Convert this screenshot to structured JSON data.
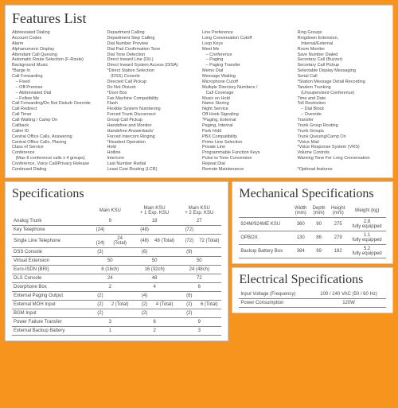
{
  "features": {
    "title": "Features List",
    "columns": [
      [
        "Abbreviated Dialing",
        "Account Codes",
        "Alarm",
        "Alphanumeric Display",
        "Attendant Call Queuing",
        "Automatic Route Selection (F-Route)",
        "Background Music",
        "*Barge In",
        "Call Forwarding",
        "   – Fixed",
        "   – Off-Premise",
        "   – Abbreviated Dial",
        "   – Follow Me",
        "Call Forwarding/Do Not Disturb Override",
        "Call Redirect",
        "Call Timer",
        "Call Waiting / Camp On",
        "Callback",
        "Caller ID",
        "Central Office Calls, Answering",
        "Central Office Calls, Placing",
        "Class of Service",
        "Conference",
        "   (Max 8 conference calls x 4 groups)",
        "Conference, Voice Call/Privacy Release",
        "Continued Dialing"
      ],
      [
        "Department Calling",
        "Department Step Calling",
        "Dial Number Preview",
        "Dial Pad Confirmation Tone",
        "Dial Tone Detection",
        "Direct Inward Line (DIL)",
        "Direct Inward System Access (DISA)",
        "*Direct Station Selection",
        "   (DSS) Console",
        "Directed Call Pickup",
        "Do Not Disturb",
        "*Door Box",
        "Fax Machine Compatibility",
        "Flash",
        "Flexible System Numbering",
        "Forced Trunk Disconnect",
        "Group Call Pickup",
        "Handsfree and Monitor",
        "Handsfree Answerback/",
        "Forced Intercom Ringing",
        "*Headset Operation",
        "Hold",
        "Hotline",
        "Intercom",
        "Last Number Redial",
        "Least Cost Routing (LCR)"
      ],
      [
        "Line Preference",
        "Long Conversation Cutoff",
        "Loop Keys",
        "Meet Me",
        "   – Conference",
        "   – Paging",
        "   – Paging Transfer",
        "Memo Dial",
        "Message Waiting",
        "Microphone Cutoff",
        "Multiple Directory Numbers /",
        "   Call Coverage",
        "Music on Hold",
        "Name Storing",
        "Night Service",
        "Off Hook Signaling",
        "*Paging, External",
        "Paging, Internal",
        "Park Hold",
        "PBX Compatibility",
        "Prime Line Selection",
        "Private Line",
        "Programmable Function Keys",
        "Pulse to Tone Conversion",
        "Repeat Dial",
        "Remote Maintenance"
      ],
      [
        "Ring Groups",
        "Ringdown Extension,",
        "   Internal/External",
        "Room Monitor",
        "Save Number Dialed",
        "Secretary Call (Buzzer)",
        "Secretary Call Pickup",
        "Selectable Display Messaging",
        "Serial Call",
        "*Station Message Detail Recording",
        "Tandem Trunking",
        "   (Unsupervised Conference)",
        "Time and Date",
        "Toll Restriction",
        "   – Dial Block",
        "   – Override",
        "Transfer",
        "Trunk Group Routing",
        "Trunk Groups",
        "Trunk Queuing/Camp On",
        "*Voice Mail",
        "*Voice Response System (VRS)",
        "Volume Controls",
        "Warning Tone For Long Conversation",
        "",
        "*Optional features"
      ]
    ]
  },
  "specs": {
    "title": "Specifications",
    "headers": [
      "",
      "Main KSU",
      "Main KSU\n+ 1 Exp. KSU",
      "Main KSU\n+ 2 Exp. KSU"
    ],
    "rows": [
      {
        "label": "Analog Trunk",
        "c": [
          "9",
          "18",
          "27"
        ]
      },
      {
        "label": "Key Telephone",
        "c": [
          [
            "(24)",
            ""
          ],
          [
            "(48)",
            ""
          ],
          [
            "(72)",
            ""
          ]
        ]
      },
      {
        "label": "Single Line Telephone",
        "c": [
          [
            "(24)",
            "24 (Total)"
          ],
          [
            "(48)",
            "48 (Total)"
          ],
          [
            "(72)",
            "72 (Total)"
          ]
        ]
      },
      {
        "label": "DSS Console",
        "c": [
          [
            "(3)",
            ""
          ],
          [
            "(6)",
            ""
          ],
          [
            "(9)",
            ""
          ]
        ]
      },
      {
        "label": "Virtual Extension",
        "c": [
          "50",
          "50",
          "50"
        ]
      },
      {
        "label": "Euro-ISDN (BRI)",
        "c": [
          "8 (16ch)",
          "16 (32ch)",
          "24 (48ch)"
        ]
      },
      {
        "label": "DLS Console",
        "c": [
          "24",
          "48",
          "72"
        ]
      },
      {
        "label": "Doorphone Box",
        "c": [
          "2",
          "4",
          "6"
        ]
      },
      {
        "label": "External Paging Output",
        "c": [
          [
            "(2)",
            ""
          ],
          [
            "(4)",
            ""
          ],
          [
            "(6)",
            ""
          ]
        ]
      },
      {
        "label": "External MOH Input",
        "c": [
          [
            "(2)",
            "2 (Total)"
          ],
          [
            "(2)",
            "4 (Total)"
          ],
          [
            "(2)",
            "6 (Total)"
          ]
        ]
      },
      {
        "label": "BGM Input",
        "c": [
          [
            "(2)",
            ""
          ],
          [
            "(2)",
            ""
          ],
          [
            "(2)",
            ""
          ]
        ]
      },
      {
        "label": "Power Failure Transfer",
        "c": [
          "3",
          "6",
          "9"
        ]
      },
      {
        "label": "External Backup Battery",
        "c": [
          "1",
          "2",
          "3"
        ]
      }
    ]
  },
  "mech": {
    "title": "Mechanical Specifications",
    "headers": [
      "",
      "Width\n(mm)",
      "Depth\n(mm)",
      "Height\n(mm)",
      "Weight (kg)"
    ],
    "rows": [
      [
        "924M/924ME KSU",
        "360",
        "90",
        "275",
        "2.8\nfully equipped"
      ],
      [
        "OPBOX",
        "130",
        "86",
        "279",
        "1.1\nfully equipped"
      ],
      [
        "Backup Battery Box",
        "384",
        "99",
        "182",
        "5.2\nfully equipped"
      ]
    ]
  },
  "elec": {
    "title": "Electrical Specifications",
    "rows": [
      [
        "Input Voltage (Frequency)",
        "100 / 240 VAC (50 / 60 Hz)"
      ],
      [
        "Power Consumption",
        "120W"
      ]
    ]
  }
}
